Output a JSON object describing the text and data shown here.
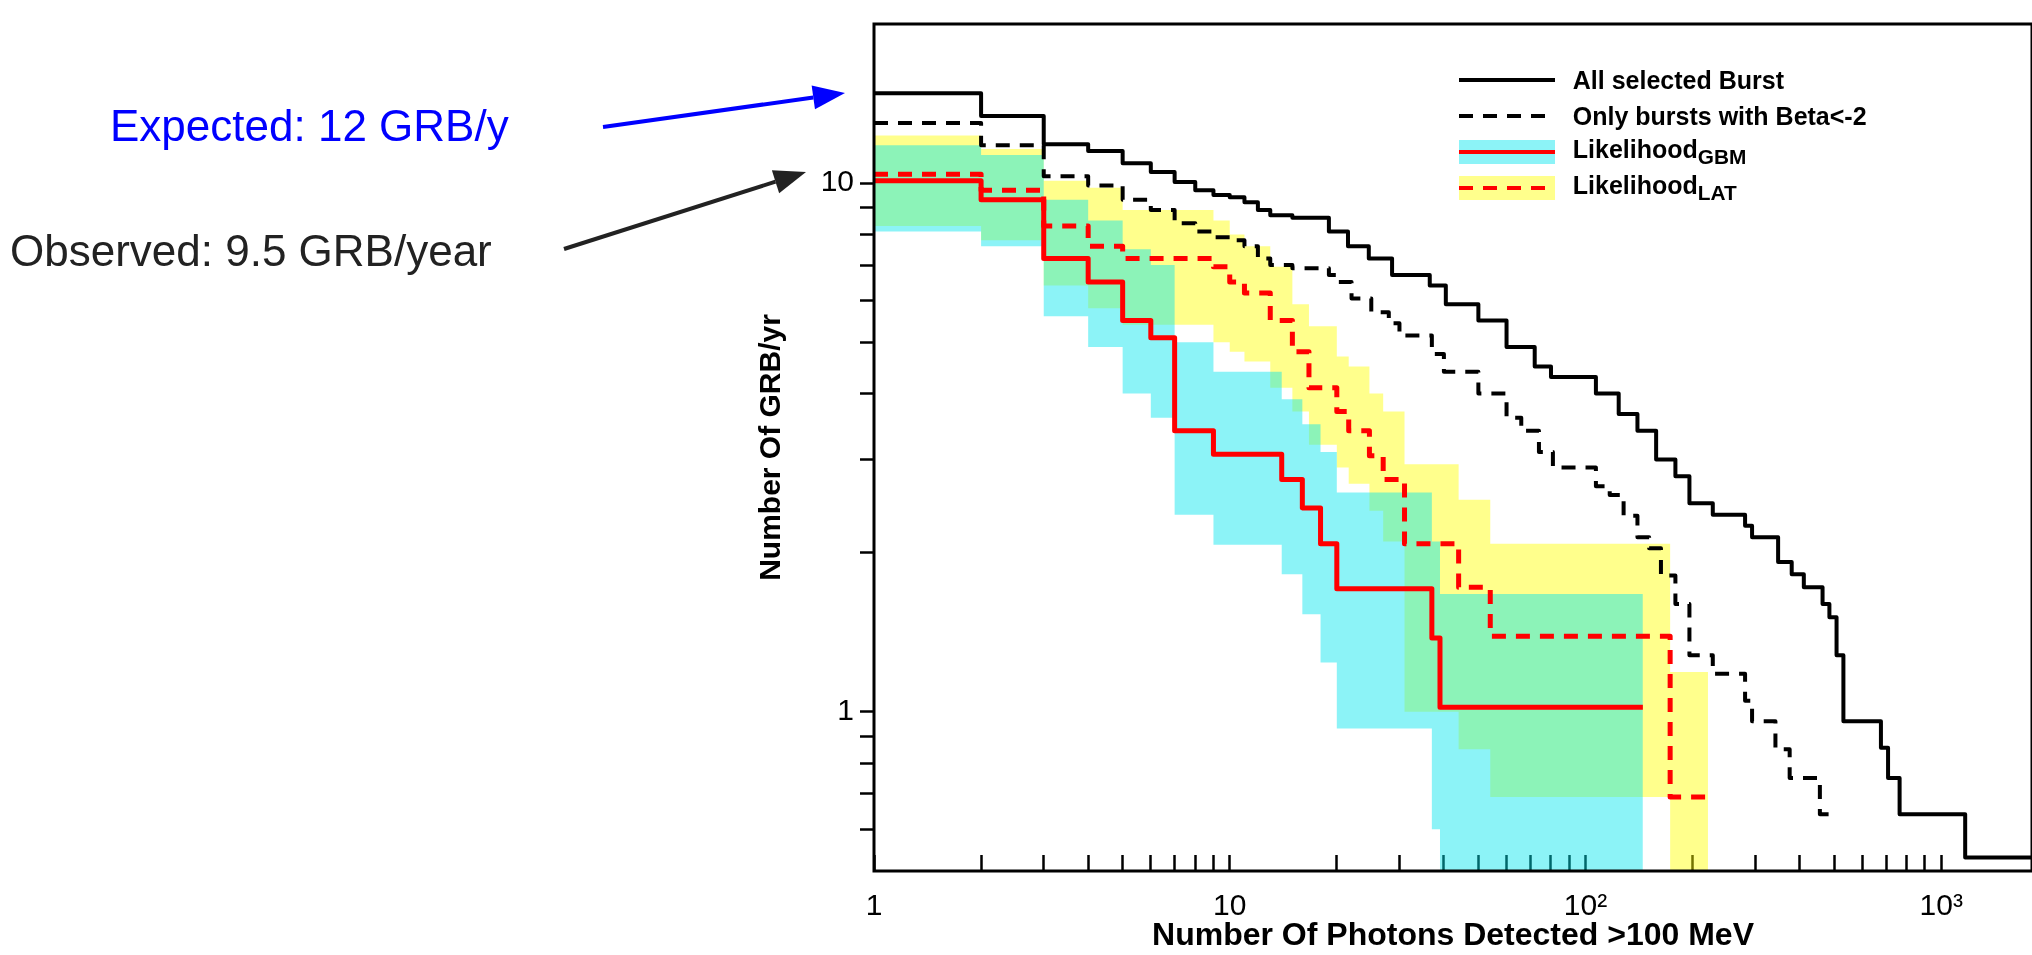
{
  "chart_data": {
    "type": "step",
    "xlabel": "Number Of Photons Detected >100 MeV",
    "ylabel": "Number Of GRB/yr",
    "log": "xy",
    "legend": "top right",
    "xlim": [
      1,
      1800
    ],
    "ylim": [
      0.5,
      20
    ],
    "xticks": [
      1,
      {
        "value": 2,
        "label": null
      },
      {
        "value": 3,
        "label": null
      },
      {
        "value": 4,
        "label": null
      },
      {
        "value": 5,
        "label": null
      },
      {
        "value": 6,
        "label": null
      },
      {
        "value": 7,
        "label": null
      },
      {
        "value": 8,
        "label": null
      },
      {
        "value": 9,
        "label": null
      },
      10,
      {
        "value": 20,
        "label": null
      },
      {
        "value": 30,
        "label": null
      },
      {
        "value": 40,
        "label": null
      },
      {
        "value": 50,
        "label": null
      },
      {
        "value": 60,
        "label": null
      },
      {
        "value": 70,
        "label": null
      },
      {
        "value": 80,
        "label": null
      },
      {
        "value": 90,
        "label": null
      },
      {
        "value": 100,
        "label": "10²"
      },
      {
        "value": 200,
        "label": null
      },
      {
        "value": 300,
        "label": null
      },
      {
        "value": 400,
        "label": null
      },
      {
        "value": 500,
        "label": null
      },
      {
        "value": 600,
        "label": null
      },
      {
        "value": 700,
        "label": null
      },
      {
        "value": 800,
        "label": null
      },
      {
        "value": 900,
        "label": null
      },
      {
        "value": 1000,
        "label": "10³"
      }
    ],
    "yticks": [
      {
        "value": 0.6,
        "label": null
      },
      {
        "value": 0.7,
        "label": null
      },
      {
        "value": 0.8,
        "label": null
      },
      {
        "value": 0.9,
        "label": null
      },
      1,
      {
        "value": 2,
        "label": null
      },
      {
        "value": 3,
        "label": null
      },
      {
        "value": 4,
        "label": null
      },
      {
        "value": 5,
        "label": null
      },
      {
        "value": 6,
        "label": null
      },
      {
        "value": 7,
        "label": null
      },
      {
        "value": 8,
        "label": null
      },
      {
        "value": 9,
        "label": null
      },
      10
    ],
    "series": [
      {
        "name": "All selected Burst",
        "color": "#000000",
        "line_style": "solid",
        "x": [
          1,
          2,
          3,
          4,
          5,
          6,
          7,
          8,
          9,
          10,
          11,
          12,
          13,
          15,
          19,
          21.5,
          24.6,
          28.6,
          36.5,
          40.5,
          50,
          60,
          72,
          80,
          107,
          124,
          140,
          158,
          179,
          196,
          228,
          281,
          294,
          348,
          380,
          411,
          464,
          485,
          508,
          531,
          677,
          709,
          764,
          1168,
          1800
        ],
        "values": [
          14.8,
          13.4,
          11.85,
          11.5,
          10.9,
          10.5,
          10.05,
          9.7,
          9.5,
          9.4,
          9.2,
          8.9,
          8.7,
          8.6,
          8.1,
          7.6,
          7.2,
          6.7,
          6.4,
          5.9,
          5.5,
          4.9,
          4.5,
          4.3,
          4.0,
          3.66,
          3.4,
          3.0,
          2.79,
          2.48,
          2.36,
          2.25,
          2.14,
          1.92,
          1.82,
          1.72,
          1.6,
          1.51,
          1.28,
          0.96,
          0.855,
          0.75,
          0.64,
          0.53,
          0.53
        ]
      },
      {
        "name": "Only bursts with Beta<-2",
        "color": "#000000",
        "line_style": "dashed",
        "x": [
          1,
          2,
          3,
          4,
          5,
          6,
          7,
          8,
          9,
          10,
          11,
          12,
          13,
          15,
          19,
          20,
          22,
          25,
          28,
          30,
          37,
          40,
          50,
          60,
          66,
          74,
          81,
          107,
          117,
          128,
          140,
          151,
          163,
          179,
          196,
          228,
          281,
          294,
          342,
          375,
          456,
          485
        ],
        "values": [
          13.0,
          11.8,
          10.3,
          9.9,
          9.3,
          8.9,
          8.4,
          8.1,
          7.9,
          7.8,
          7.6,
          7.2,
          7.0,
          6.9,
          6.7,
          6.5,
          6.05,
          5.7,
          5.43,
          5.15,
          4.75,
          4.4,
          4.0,
          3.6,
          3.4,
          3.1,
          2.9,
          2.67,
          2.57,
          2.35,
          2.14,
          2.04,
          1.81,
          1.6,
          1.28,
          1.18,
          1.05,
          0.96,
          0.85,
          0.75,
          0.64,
          0.64
        ]
      },
      {
        "name": "Likelihood$_{GBM}$",
        "color": "#ff0000",
        "line_style": "solid",
        "x": [
          1,
          2,
          3,
          4,
          5,
          6,
          7,
          9,
          14,
          16,
          18,
          20,
          37,
          39,
          145
        ],
        "values": [
          10.1,
          9.3,
          7.2,
          6.5,
          5.5,
          5.1,
          3.4,
          3.07,
          2.75,
          2.43,
          2.08,
          1.71,
          1.38,
          1.02,
          1.02
        ],
        "upper": [
          11.8,
          11.3,
          9.3,
          8.5,
          7.5,
          7.0,
          5.0,
          4.4,
          3.9,
          3.5,
          3.1,
          2.6,
          2.1,
          1.67,
          1.67
        ],
        "lower": [
          8.1,
          7.6,
          5.6,
          4.9,
          4.0,
          3.6,
          2.36,
          2.07,
          1.82,
          1.53,
          1.24,
          0.93,
          0.6,
          0.5,
          0.5
        ]
      },
      {
        "name": "Likelihood$_{LAT}$",
        "color": "#ff0000",
        "line_style": "dashed",
        "x": [
          1,
          2,
          3,
          4,
          5,
          9,
          10,
          11,
          13,
          15,
          16.7,
          20,
          21.6,
          24.7,
          27,
          31,
          44,
          54,
          173,
          221
        ],
        "values": [
          10.4,
          9.7,
          8.3,
          7.6,
          7.2,
          6.95,
          6.5,
          6.2,
          5.5,
          4.8,
          4.1,
          3.7,
          3.4,
          3.05,
          2.75,
          2.08,
          1.72,
          1.39,
          0.69,
          0.69
        ],
        "upper": [
          12.3,
          11.6,
          10.1,
          9.8,
          8.9,
          8.5,
          8.0,
          7.6,
          6.95,
          5.9,
          5.36,
          4.7,
          4.5,
          4.0,
          3.7,
          2.94,
          2.52,
          2.08,
          1.19,
          1.19
        ],
        "lower": [
          8.3,
          7.8,
          6.4,
          5.8,
          5.4,
          5.0,
          4.8,
          4.6,
          4.1,
          3.7,
          3.2,
          2.9,
          2.7,
          2.4,
          2.1,
          1.0,
          0.85,
          0.69,
          0.5,
          0.5
        ]
      }
    ],
    "annotations": [
      "Expected: 12 GRB/y",
      "Observed: 9.5 GRB/year"
    ]
  }
}
